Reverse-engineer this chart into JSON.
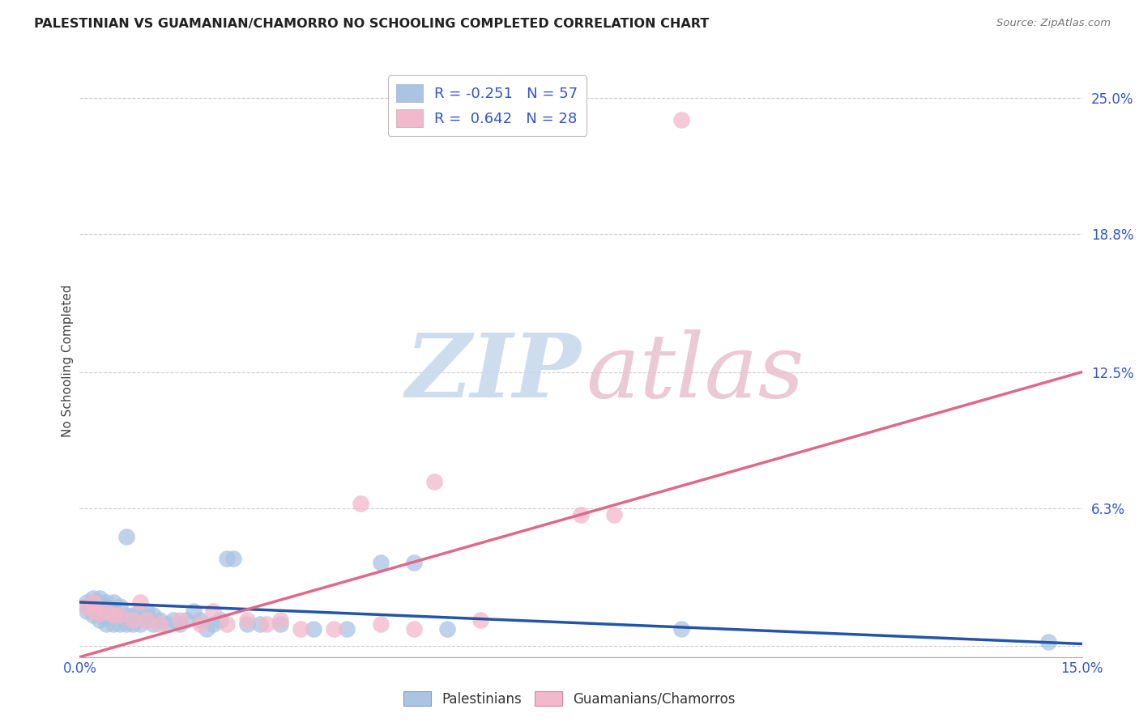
{
  "title": "PALESTINIAN VS GUAMANIAN/CHAMORRO NO SCHOOLING COMPLETED CORRELATION CHART",
  "source": "Source: ZipAtlas.com",
  "ylabel": "No Schooling Completed",
  "xlim": [
    0.0,
    0.15
  ],
  "ylim": [
    -0.005,
    0.265
  ],
  "ytick_positions": [
    0.0,
    0.063,
    0.125,
    0.188,
    0.25
  ],
  "ytick_labels": [
    "",
    "6.3%",
    "12.5%",
    "18.8%",
    "25.0%"
  ],
  "blue_color": "#aac4e2",
  "pink_color": "#f2b8cb",
  "blue_line_color": "#2255aa",
  "pink_line_color": "#e06888",
  "legend_text_color": "#3355cc",
  "R_blue": -0.251,
  "N_blue": 57,
  "R_pink": 0.642,
  "N_pink": 28,
  "grid_color": "#cccccc",
  "blue_line_x0": 0.0,
  "blue_line_y0": 0.02,
  "blue_line_x1": 0.15,
  "blue_line_y1": 0.001,
  "pink_line_x0": 0.0,
  "pink_line_y0": -0.005,
  "pink_line_x1": 0.15,
  "pink_line_y1": 0.125,
  "blue_points_x": [
    0.001,
    0.001,
    0.001,
    0.002,
    0.002,
    0.002,
    0.002,
    0.003,
    0.003,
    0.003,
    0.003,
    0.003,
    0.004,
    0.004,
    0.004,
    0.004,
    0.004,
    0.005,
    0.005,
    0.005,
    0.005,
    0.006,
    0.006,
    0.006,
    0.007,
    0.007,
    0.007,
    0.008,
    0.008,
    0.009,
    0.009,
    0.01,
    0.01,
    0.011,
    0.011,
    0.012,
    0.013,
    0.014,
    0.015,
    0.016,
    0.017,
    0.018,
    0.019,
    0.02,
    0.021,
    0.022,
    0.023,
    0.025,
    0.027,
    0.03,
    0.035,
    0.04,
    0.045,
    0.05,
    0.055,
    0.09,
    0.145
  ],
  "blue_points_y": [
    0.016,
    0.018,
    0.02,
    0.014,
    0.016,
    0.018,
    0.022,
    0.012,
    0.015,
    0.018,
    0.02,
    0.022,
    0.01,
    0.013,
    0.016,
    0.018,
    0.02,
    0.01,
    0.014,
    0.016,
    0.02,
    0.01,
    0.014,
    0.018,
    0.01,
    0.014,
    0.05,
    0.01,
    0.014,
    0.01,
    0.016,
    0.012,
    0.016,
    0.01,
    0.014,
    0.012,
    0.01,
    0.012,
    0.01,
    0.012,
    0.016,
    0.012,
    0.008,
    0.01,
    0.012,
    0.04,
    0.04,
    0.01,
    0.01,
    0.01,
    0.008,
    0.008,
    0.038,
    0.038,
    0.008,
    0.008,
    0.002
  ],
  "pink_points_x": [
    0.001,
    0.002,
    0.002,
    0.003,
    0.004,
    0.005,
    0.006,
    0.008,
    0.009,
    0.01,
    0.012,
    0.015,
    0.018,
    0.02,
    0.022,
    0.025,
    0.028,
    0.03,
    0.033,
    0.038,
    0.042,
    0.045,
    0.05,
    0.053,
    0.06,
    0.075,
    0.08,
    0.09
  ],
  "pink_points_y": [
    0.018,
    0.016,
    0.02,
    0.015,
    0.016,
    0.014,
    0.014,
    0.012,
    0.02,
    0.012,
    0.01,
    0.012,
    0.01,
    0.016,
    0.01,
    0.012,
    0.01,
    0.012,
    0.008,
    0.008,
    0.065,
    0.01,
    0.008,
    0.075,
    0.012,
    0.06,
    0.06,
    0.24
  ]
}
